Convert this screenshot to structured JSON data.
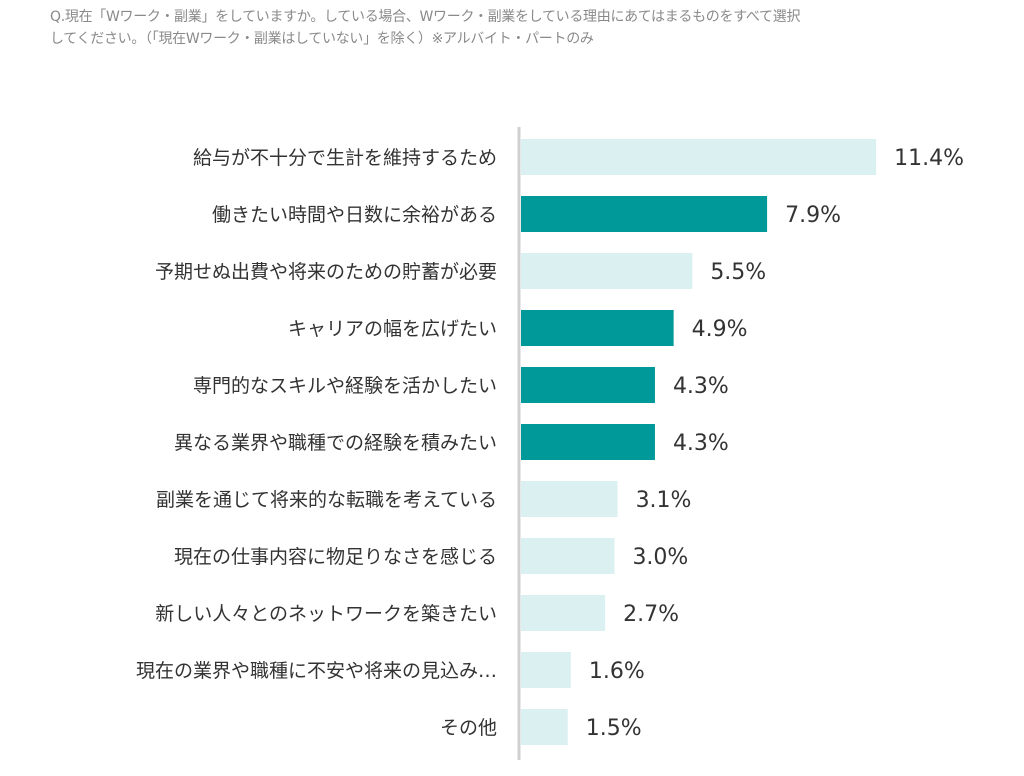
{
  "question": {
    "line1": "Q.現在「Wワーク・副業」をしていますか。している場合、Wワーク・副業をしている理由にあてはまるものをすべて選択",
    "line2": "してください。（「現在Wワーク・副業はしていない」を除く）※アルバイト・パートのみ"
  },
  "chart_data": {
    "type": "bar",
    "orientation": "horizontal",
    "title": "",
    "xlabel": "",
    "ylabel": "",
    "categories": [
      "給与が不十分で生計を維持するため",
      "働きたい時間や日数に余裕がある",
      "予期せぬ出費や将来のための貯蓄が必要",
      "キャリアの幅を広げたい",
      "専門的なスキルや経験を活かしたい",
      "異なる業界や職種での経験を積みたい",
      "副業を通じて将来的な転職を考えている",
      "現在の仕事内容に物足りなさを感じる",
      "新しい人々とのネットワークを築きたい",
      "現在の業界や職種に不安や将来の見込み…",
      "その他"
    ],
    "values": [
      11.4,
      7.9,
      5.5,
      4.9,
      4.3,
      4.3,
      3.1,
      3.0,
      2.7,
      1.6,
      1.5
    ],
    "value_labels": [
      "11.4%",
      "7.9%",
      "5.5%",
      "4.9%",
      "4.3%",
      "4.3%",
      "3.1%",
      "3.0%",
      "2.7%",
      "1.6%",
      "1.5%"
    ],
    "highlighted": [
      false,
      true,
      false,
      true,
      true,
      true,
      false,
      false,
      false,
      false,
      false
    ],
    "colors": {
      "highlight": "#009999",
      "normal": "#daf0f1",
      "axis": "#d0d0d0"
    },
    "unit": "%",
    "grid": false
  }
}
